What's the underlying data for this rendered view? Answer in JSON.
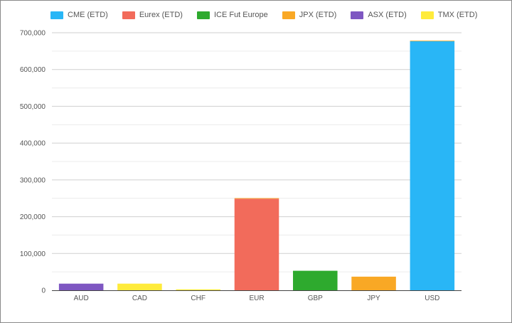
{
  "chart_data": {
    "type": "bar",
    "stacked": true,
    "title": "",
    "xlabel": "",
    "ylabel": "",
    "ylim": [
      0,
      700000
    ],
    "yticks": [
      0,
      100000,
      200000,
      300000,
      400000,
      500000,
      600000,
      700000
    ],
    "ytick_labels": [
      "0",
      "100,000",
      "200,000",
      "300,000",
      "400,000",
      "500,000",
      "600,000",
      "700,000"
    ],
    "grid": true,
    "legend_position": "top-left",
    "categories": [
      "AUD",
      "CAD",
      "CHF",
      "EUR",
      "GBP",
      "JPY",
      "USD"
    ],
    "series": [
      {
        "name": "CME (ETD)",
        "color": "#29b6f6",
        "values": [
          0,
          0,
          0,
          0,
          0,
          0,
          677000
        ]
      },
      {
        "name": "Eurex (ETD)",
        "color": "#f26b5b",
        "values": [
          0,
          0,
          0,
          249000,
          0,
          0,
          0
        ]
      },
      {
        "name": "ICE Fut Europe",
        "color": "#2eaa2e",
        "values": [
          0,
          0,
          0,
          0,
          53000,
          0,
          0
        ]
      },
      {
        "name": "JPX (ETD)",
        "color": "#f9a825",
        "values": [
          0,
          0,
          0,
          1500,
          0,
          37000,
          1500
        ]
      },
      {
        "name": "ASX (ETD)",
        "color": "#7e57c2",
        "values": [
          18000,
          0,
          0,
          0,
          0,
          0,
          0
        ]
      },
      {
        "name": "TMX (ETD)",
        "color": "#ffeb3b",
        "values": [
          0,
          18000,
          2500,
          0,
          0,
          0,
          0
        ]
      }
    ]
  }
}
